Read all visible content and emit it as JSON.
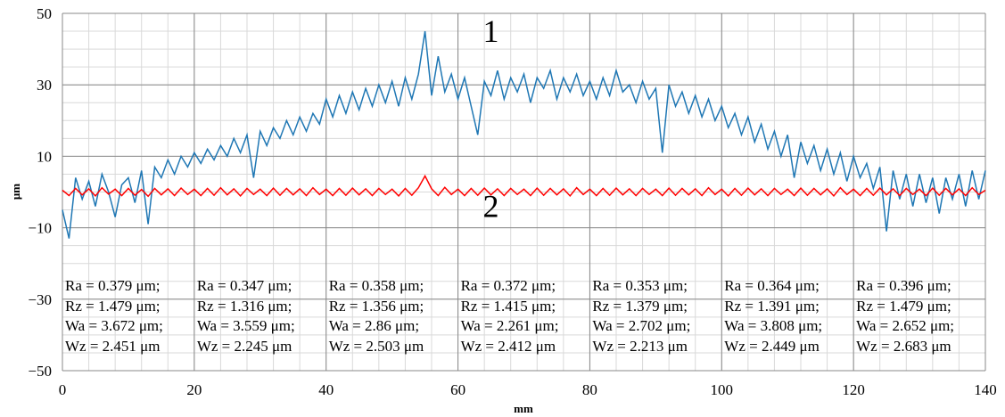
{
  "chart_data": {
    "type": "line",
    "xlabel": "mm",
    "ylabel": "μm",
    "xlim": [
      0,
      140
    ],
    "ylim": [
      -50,
      50
    ],
    "xticks": [
      0,
      20,
      40,
      60,
      80,
      100,
      120,
      140
    ],
    "yticks": [
      50,
      30,
      10,
      -10,
      -30,
      -50
    ],
    "ytick_labels": [
      "50",
      "30",
      "10",
      "−10",
      "−30",
      "−50"
    ],
    "grid": true,
    "x": [
      0,
      1,
      2,
      3,
      4,
      5,
      6,
      7,
      8,
      9,
      10,
      11,
      12,
      13,
      14,
      15,
      16,
      17,
      18,
      19,
      20,
      21,
      22,
      23,
      24,
      25,
      26,
      27,
      28,
      29,
      30,
      31,
      32,
      33,
      34,
      35,
      36,
      37,
      38,
      39,
      40,
      41,
      42,
      43,
      44,
      45,
      46,
      47,
      48,
      49,
      50,
      51,
      52,
      53,
      54,
      55,
      56,
      57,
      58,
      59,
      60,
      61,
      62,
      63,
      64,
      65,
      66,
      67,
      68,
      69,
      70,
      71,
      72,
      73,
      74,
      75,
      76,
      77,
      78,
      79,
      80,
      81,
      82,
      83,
      84,
      85,
      86,
      87,
      88,
      89,
      90,
      91,
      92,
      93,
      94,
      95,
      96,
      97,
      98,
      99,
      100,
      101,
      102,
      103,
      104,
      105,
      106,
      107,
      108,
      109,
      110,
      111,
      112,
      113,
      114,
      115,
      116,
      117,
      118,
      119,
      120,
      121,
      122,
      123,
      124,
      125,
      126,
      127,
      128,
      129,
      130,
      131,
      132,
      133,
      134,
      135,
      136,
      137,
      138,
      139,
      140
    ],
    "series": [
      {
        "name": "1",
        "color": "#1f77b4",
        "values": [
          -5,
          -13,
          4,
          -2,
          3,
          -4,
          5,
          0,
          -7,
          2,
          4,
          -3,
          6,
          -9,
          7,
          4,
          9,
          5,
          10,
          7,
          11,
          8,
          12,
          9,
          13,
          10,
          15,
          11,
          16,
          4,
          17,
          13,
          18,
          15,
          20,
          16,
          21,
          17,
          22,
          19,
          26,
          21,
          27,
          22,
          28,
          23,
          29,
          24,
          30,
          25,
          31,
          24,
          32,
          26,
          33,
          45,
          27,
          38,
          28,
          33,
          26,
          32,
          24,
          16,
          31,
          27,
          34,
          26,
          32,
          28,
          33,
          25,
          32,
          29,
          34,
          26,
          32,
          28,
          33,
          27,
          31,
          26,
          32,
          27,
          34,
          28,
          30,
          25,
          31,
          26,
          29,
          11,
          30,
          24,
          28,
          22,
          27,
          21,
          26,
          20,
          24,
          18,
          22,
          16,
          21,
          14,
          19,
          12,
          17,
          10,
          16,
          4,
          14,
          8,
          13,
          6,
          12,
          5,
          11,
          3,
          10,
          4,
          8,
          1,
          7,
          -11,
          6,
          -2,
          5,
          -4,
          5,
          -3,
          4,
          -6,
          4,
          -2,
          5,
          -4,
          6,
          -2,
          6
        ]
      },
      {
        "name": "2",
        "color": "#ff0000",
        "values": [
          0.5,
          -1,
          1,
          -0.8,
          0.9,
          -1.1,
          1.2,
          -0.6,
          0.8,
          -1,
          1,
          -0.9,
          0.7,
          -1.2,
          1,
          -0.8,
          0.9,
          -1,
          1.1,
          -0.7,
          0.8,
          -1,
          1,
          -0.9,
          1.2,
          -0.8,
          0.9,
          -1.1,
          1,
          -0.7,
          0.8,
          -1,
          1.1,
          -0.9,
          1,
          -0.8,
          0.9,
          -1,
          1.2,
          -0.7,
          0.8,
          -1,
          1,
          -0.9,
          1.1,
          -0.8,
          0.9,
          -1,
          1,
          -0.7,
          0.8,
          -1.1,
          1,
          -0.9,
          1.2,
          4.5,
          0.9,
          -1,
          1.3,
          -0.7,
          0.8,
          -1,
          1,
          -0.9,
          1.1,
          -0.8,
          0.9,
          -1,
          1,
          -0.7,
          0.8,
          -1,
          1.1,
          -0.9,
          1,
          -0.8,
          0.9,
          -1.1,
          1.2,
          -0.7,
          0.8,
          -1,
          1,
          -0.9,
          1.1,
          -0.8,
          0.9,
          -1,
          1,
          -0.7,
          0.8,
          -1,
          1.1,
          -0.9,
          1,
          -0.8,
          0.9,
          -1,
          1.2,
          -0.7,
          0.8,
          -1.1,
          1,
          -0.9,
          1.1,
          -0.8,
          0.9,
          -1,
          1,
          -0.7,
          0.8,
          -1,
          1.1,
          -0.9,
          1,
          -0.8,
          0.9,
          -1.1,
          1.2,
          -0.7,
          0.8,
          -1,
          1,
          -0.9,
          1.1,
          -0.8,
          0.9,
          -1,
          1,
          -0.7,
          0.8,
          -1,
          1.1,
          -0.9,
          1,
          -0.8,
          0.9,
          -1,
          1.2,
          -0.7,
          0.5
        ]
      }
    ],
    "annotations": [
      {
        "text": "1",
        "x": 65,
        "y": 42
      },
      {
        "text": "2",
        "x": 65,
        "y": -7
      }
    ],
    "table": [
      [
        "Ra = 0.379 μm;",
        "Rz = 1.479 μm;",
        "Wa = 3.672 μm;",
        "Wz = 2.451 μm"
      ],
      [
        "Ra = 0.347 μm;",
        "Rz = 1.316 μm;",
        "Wa = 3.559 μm;",
        "Wz = 2.245 μm"
      ],
      [
        "Ra = 0.358 μm;",
        "Rz = 1.356 μm;",
        "Wa = 2.86 μm;",
        "Wz = 2.503 μm"
      ],
      [
        "Ra = 0.372 μm;",
        "Rz = 1.415 μm;",
        "Wa = 2.261 μm;",
        "Wz = 2.412 μm"
      ],
      [
        "Ra = 0.353 μm;",
        "Rz = 1.379 μm;",
        "Wa = 2.702 μm;",
        "Wz = 2.213 μm"
      ],
      [
        "Ra = 0.364 μm;",
        "Rz = 1.391 μm;",
        "Wa = 3.808 μm;",
        "Wz = 2.449 μm"
      ],
      [
        "Ra = 0.396 μm;",
        "Rz = 1.479 μm;",
        "Wa = 2.652 μm;",
        "Wz = 2.683 μm"
      ]
    ]
  }
}
